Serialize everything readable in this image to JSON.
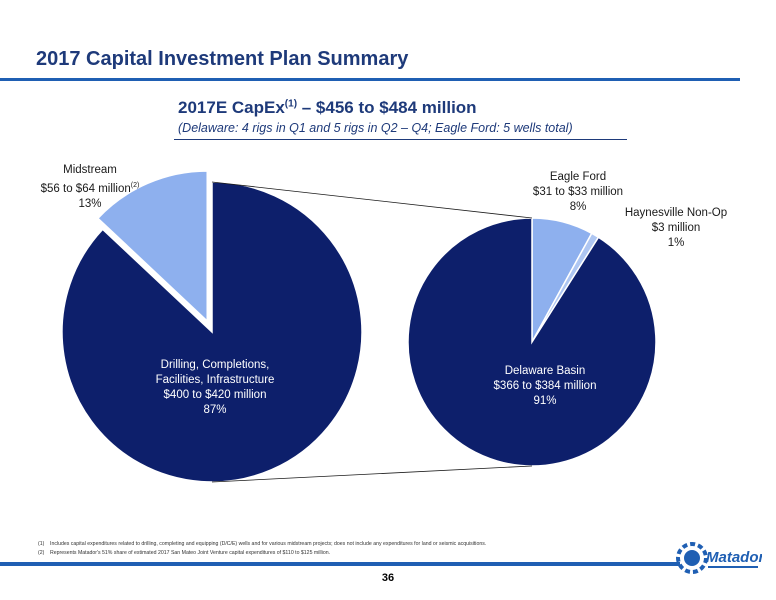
{
  "page": {
    "title": "2017 Capital Investment Plan Summary",
    "page_number": "36"
  },
  "chart": {
    "title_main": "2017E CapEx",
    "title_sup": "(1)",
    "title_rest": " – $456 to $484 million",
    "subtitle": "(Delaware: 4 rigs in Q1 and 5 rigs in Q2 – Q4; Eagle Ford: 5 wells total)"
  },
  "labels": {
    "midstream": {
      "line1": "Midstream",
      "line2": "$56 to $64 million",
      "line2_sup": "(2)",
      "line3": "13%"
    },
    "drilling": {
      "line1": "Drilling, Completions,",
      "line2": "Facilities, Infrastructure",
      "line3": "$400 to $420 million",
      "line4": "87%"
    },
    "eagle_ford": {
      "line1": "Eagle Ford",
      "line2": "$31 to $33 million",
      "line3": "8%"
    },
    "haynesville": {
      "line1": "Haynesville Non-Op",
      "line2": "$3 million",
      "line3": "1%"
    },
    "delaware": {
      "line1": "Delaware Basin",
      "line2": "$366 to $384 million",
      "line3": "91%"
    }
  },
  "footnotes": [
    {
      "num": "(1)",
      "text": "Includes capital expenditures related to drilling, completing and equipping (D/C/E) wells and for various midstream projects; does not include any expenditures for land or seismic acquisitions."
    },
    {
      "num": "(2)",
      "text": "Represents Matador's 51% share of estimated 2017 San Mateo Joint Venture capital expenditures of $110 to $125 million."
    }
  ],
  "logo": {
    "text": "Matador"
  },
  "colors": {
    "dark_slice": "#0d1f6b",
    "light_slice": "#8eb0ee",
    "title": "#1e3a7a",
    "rule": "#1f5fb3"
  },
  "chart_data": [
    {
      "type": "pie",
      "title": "2017E CapEx – $456 to $484 million",
      "slices": [
        {
          "label": "Drilling, Completions, Facilities, Infrastructure",
          "value_text": "$400 to $420 million",
          "percent": 87
        },
        {
          "label": "Midstream",
          "value_text": "$56 to $64 million",
          "percent": 13
        }
      ]
    },
    {
      "type": "pie",
      "title": "",
      "slices": [
        {
          "label": "Delaware Basin",
          "value_text": "$366 to $384 million",
          "percent": 91
        },
        {
          "label": "Eagle Ford",
          "value_text": "$31 to $33 million",
          "percent": 8
        },
        {
          "label": "Haynesville Non-Op",
          "value_text": "$3 million",
          "percent": 1
        }
      ]
    }
  ]
}
